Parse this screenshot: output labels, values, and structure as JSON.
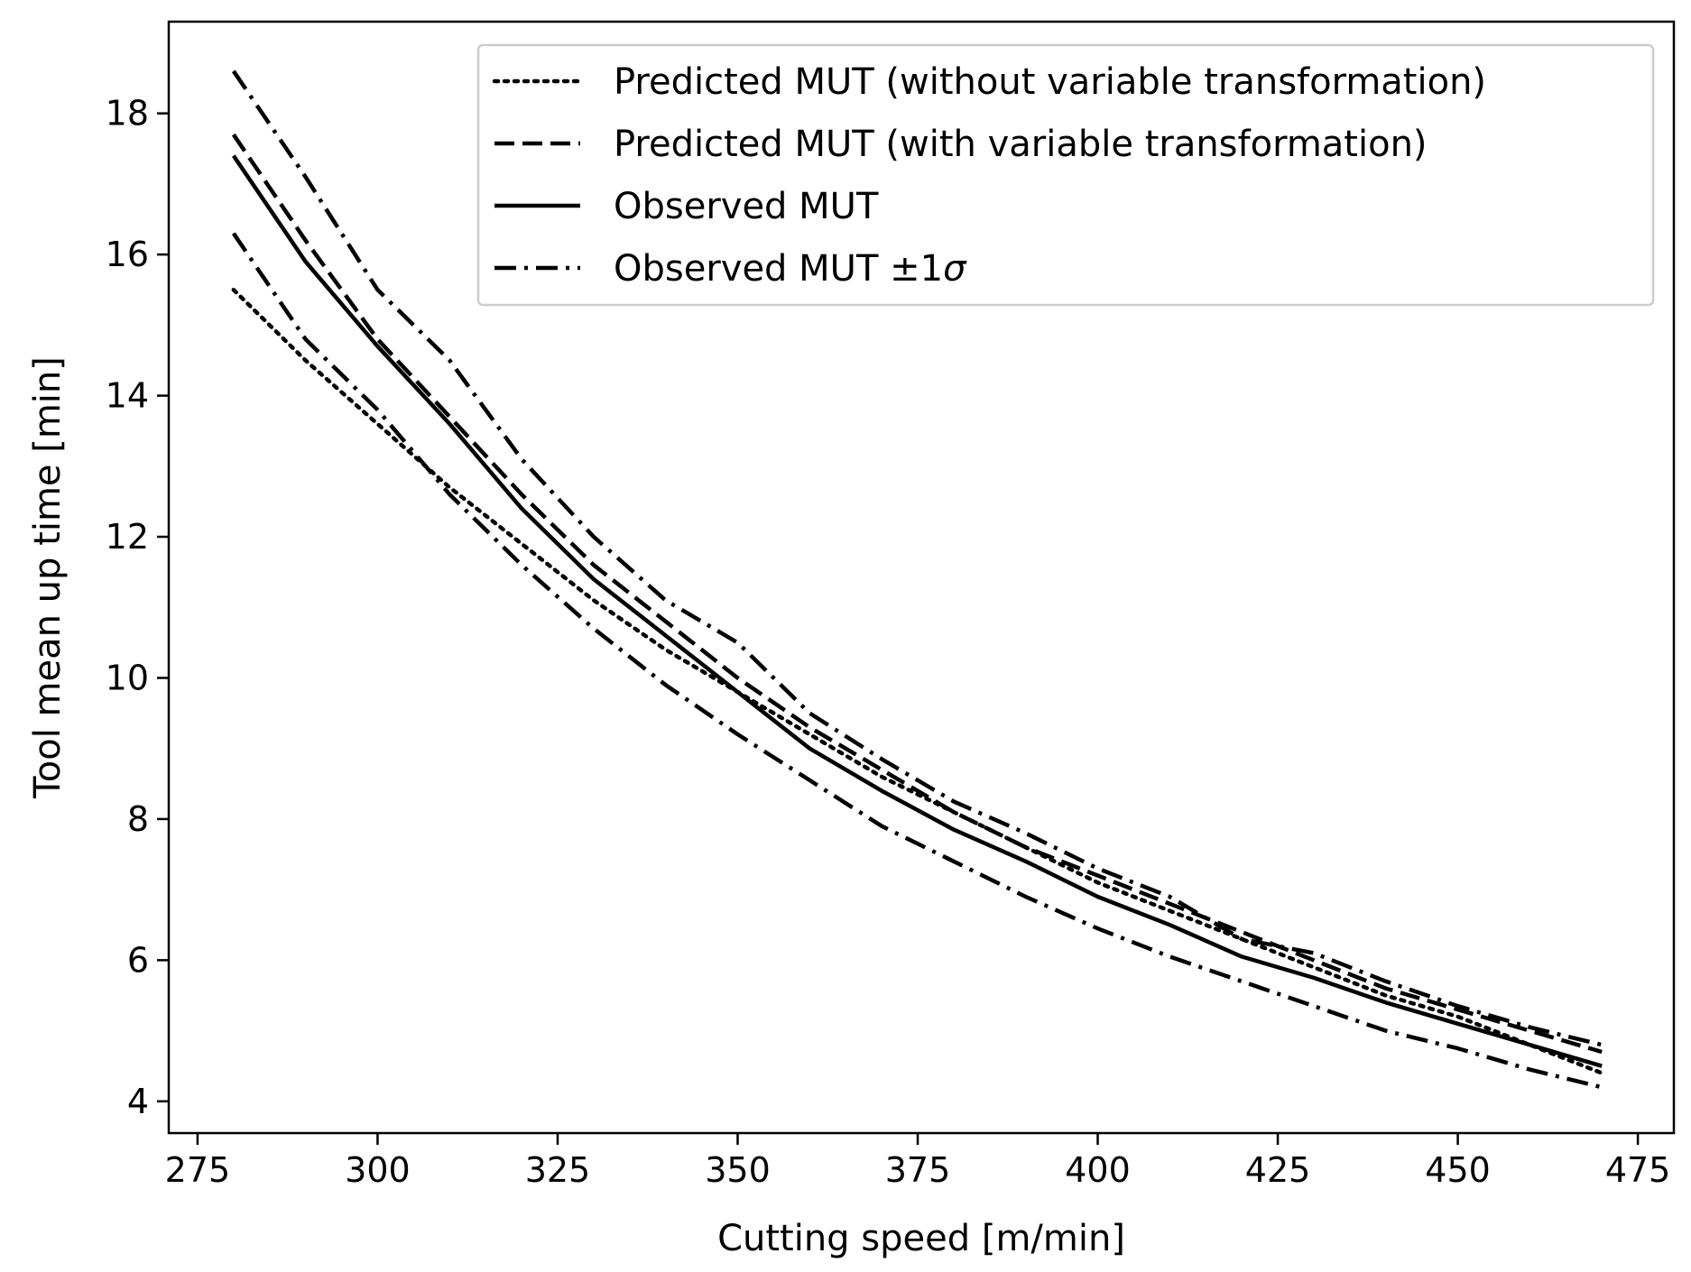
{
  "chart_data": {
    "type": "line",
    "title": "",
    "xlabel": "Cutting speed [m/min]",
    "ylabel": "Tool mean up time [min]",
    "xlim": [
      271,
      480
    ],
    "ylim": [
      3.55,
      19.3
    ],
    "xticks": [
      275,
      300,
      325,
      350,
      375,
      400,
      425,
      450,
      475
    ],
    "yticks": [
      4,
      6,
      8,
      10,
      12,
      14,
      16,
      18
    ],
    "grid": false,
    "legend_position": "top-right",
    "x": [
      280,
      290,
      300,
      310,
      320,
      330,
      340,
      350,
      360,
      370,
      380,
      390,
      400,
      410,
      420,
      430,
      440,
      450,
      460,
      470
    ],
    "series": [
      {
        "name": "Predicted MUT (without variable transformation)",
        "style": "dotted",
        "values": [
          15.5,
          14.5,
          13.6,
          12.7,
          11.9,
          11.1,
          10.4,
          9.8,
          9.2,
          8.6,
          8.1,
          7.6,
          7.1,
          6.7,
          6.3,
          5.9,
          5.5,
          5.2,
          4.8,
          4.4
        ]
      },
      {
        "name": "Predicted MUT (with variable transformation)",
        "style": "dashed",
        "values": [
          17.7,
          16.2,
          14.8,
          13.7,
          12.6,
          11.6,
          10.8,
          10.0,
          9.3,
          8.7,
          8.1,
          7.6,
          7.2,
          6.8,
          6.4,
          6.0,
          5.6,
          5.3,
          5.0,
          4.7
        ]
      },
      {
        "name": "Observed MUT",
        "style": "solid",
        "values": [
          17.4,
          15.9,
          14.7,
          13.6,
          12.4,
          11.4,
          10.6,
          9.8,
          9.0,
          8.4,
          7.85,
          7.4,
          6.9,
          6.5,
          6.05,
          5.75,
          5.4,
          5.1,
          4.8,
          4.5
        ]
      },
      {
        "name": "Observed MUT ±1σ (upper)",
        "style": "dashdot",
        "legend": false,
        "values": [
          18.6,
          17.1,
          15.5,
          14.5,
          13.1,
          12.0,
          11.1,
          10.5,
          9.5,
          8.85,
          8.25,
          7.8,
          7.3,
          6.9,
          6.3,
          6.1,
          5.7,
          5.35,
          5.05,
          4.8
        ]
      },
      {
        "name": "Observed MUT ±1σ (lower)",
        "style": "dashdot",
        "legend": false,
        "values": [
          16.3,
          14.8,
          13.8,
          12.6,
          11.6,
          10.7,
          9.9,
          9.2,
          8.55,
          7.9,
          7.4,
          6.9,
          6.45,
          6.05,
          5.7,
          5.35,
          5.0,
          4.75,
          4.45,
          4.2
        ]
      }
    ],
    "legend": [
      {
        "label": "Predicted MUT (without variable transformation)",
        "style": "dotted"
      },
      {
        "label": "Predicted MUT (with variable transformation)",
        "style": "dashed"
      },
      {
        "label": "Observed MUT",
        "style": "solid"
      },
      {
        "label": "Observed MUT ±1",
        "sigma": "σ",
        "style": "dashdot"
      }
    ]
  }
}
